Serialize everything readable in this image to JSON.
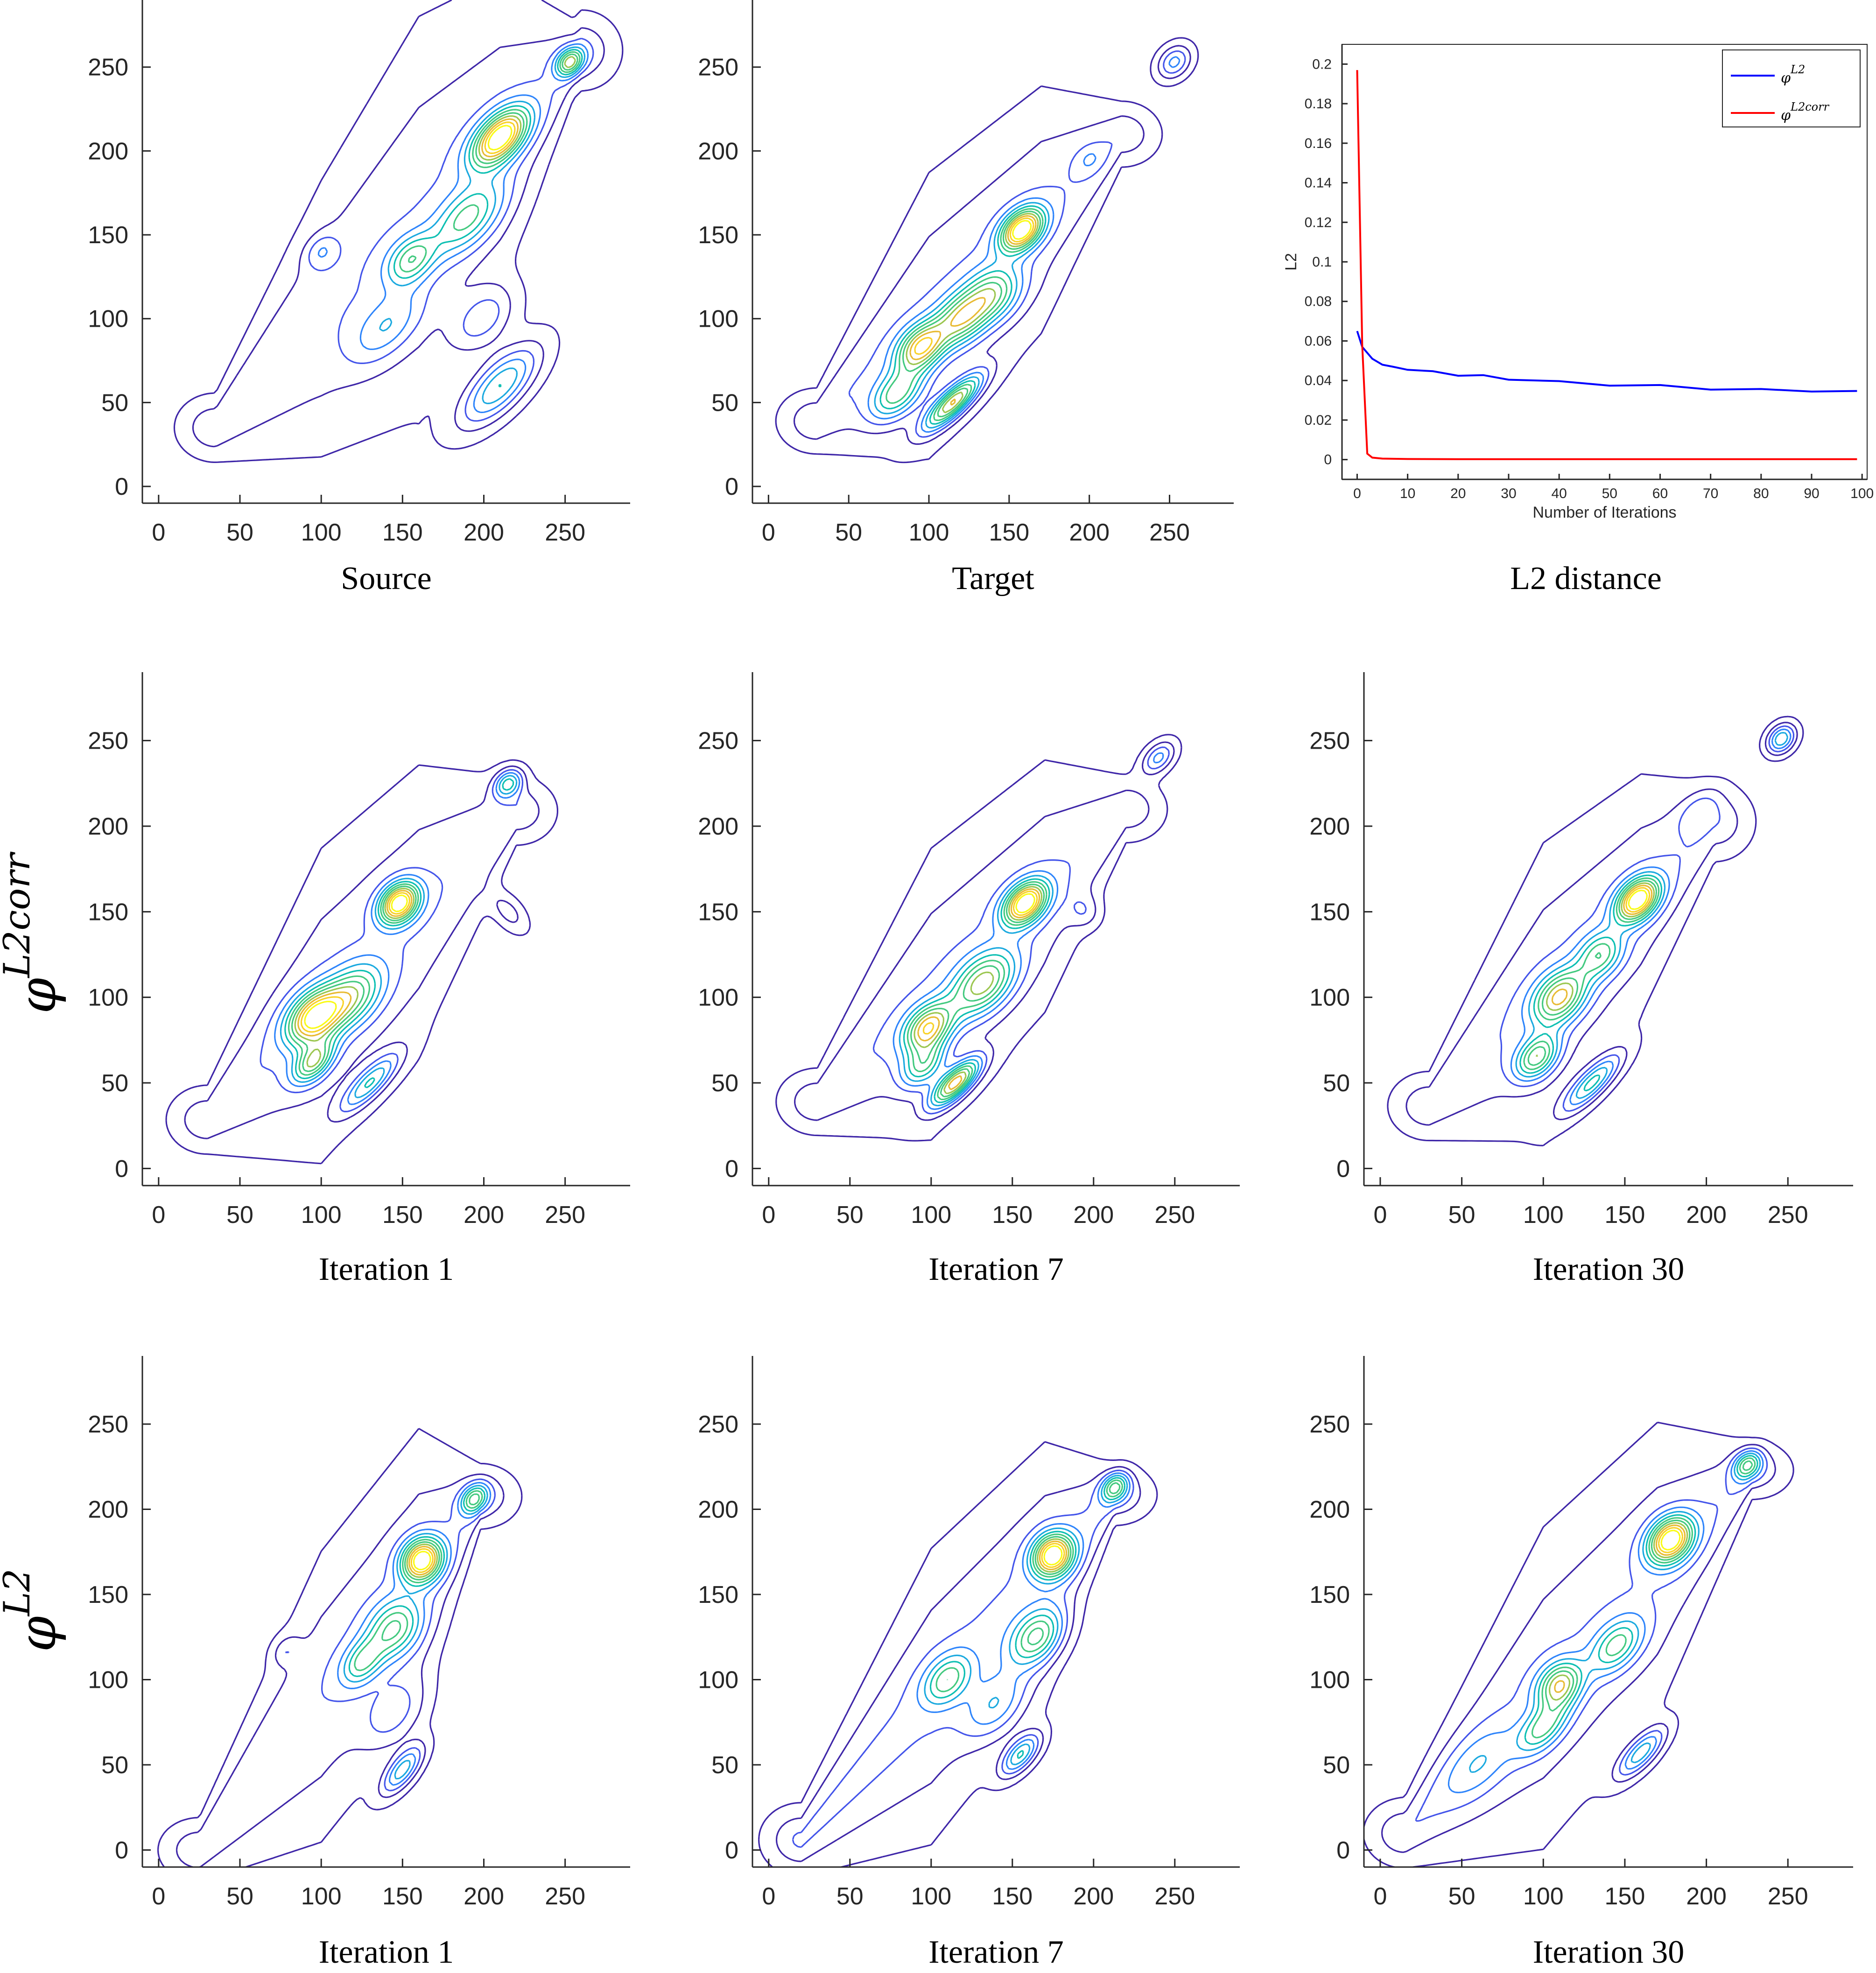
{
  "chart_data": [
    {
      "id": "source",
      "type": "contour",
      "caption": "Source",
      "xlim": [
        -10,
        290
      ],
      "ylim": [
        -10,
        290
      ],
      "xticks": [
        0,
        50,
        100,
        150,
        200,
        250
      ],
      "yticks": [
        0,
        50,
        100,
        150,
        200,
        250
      ],
      "spine": {
        "a": 1.0,
        "b": 0,
        "x0": 35,
        "x1": 260
      },
      "widths": [
        [
          35,
          12
        ],
        [
          100,
          48
        ],
        [
          160,
          70
        ],
        [
          210,
          55
        ],
        [
          255,
          14
        ]
      ],
      "peaks": [
        {
          "x": 210,
          "y": 208,
          "h": 1.0,
          "sx": 11,
          "sy": 8
        },
        {
          "x": 253,
          "y": 253,
          "h": 0.65,
          "sx": 5,
          "sy": 5
        },
        {
          "x": 190,
          "y": 160,
          "h": 0.45,
          "sx": 14,
          "sy": 10
        },
        {
          "x": 155,
          "y": 135,
          "h": 0.45,
          "sx": 9,
          "sy": 8
        },
        {
          "x": 210,
          "y": 60,
          "h": 0.5,
          "sx": 16,
          "sy": 9
        },
        {
          "x": 200,
          "y": 100,
          "h": 0.25,
          "sx": 12,
          "sy": 10
        },
        {
          "x": 140,
          "y": 95,
          "h": 0.25,
          "sx": 14,
          "sy": 10
        },
        {
          "x": 100,
          "y": 140,
          "h": 0.18,
          "sx": 6,
          "sy": 6
        }
      ]
    },
    {
      "id": "target",
      "type": "contour",
      "caption": "Target",
      "xlim": [
        -10,
        290
      ],
      "ylim": [
        -10,
        290
      ],
      "xticks": [
        0,
        50,
        100,
        150,
        200,
        250
      ],
      "yticks": [
        0,
        50,
        100,
        150,
        200,
        250
      ],
      "spine": {
        "a": 0.9,
        "b": 12,
        "x0": 30,
        "x1": 220
      },
      "widths": [
        [
          30,
          12
        ],
        [
          100,
          52
        ],
        [
          170,
          45
        ],
        [
          220,
          12
        ]
      ],
      "peaks": [
        {
          "x": 158,
          "y": 153,
          "h": 1.0,
          "sx": 8,
          "sy": 7
        },
        {
          "x": 95,
          "y": 83,
          "h": 0.75,
          "sx": 9,
          "sy": 8
        },
        {
          "x": 115,
          "y": 50,
          "h": 0.8,
          "sx": 12,
          "sy": 5
        },
        {
          "x": 120,
          "y": 100,
          "h": 0.6,
          "sx": 10,
          "sy": 9
        },
        {
          "x": 140,
          "y": 115,
          "h": 0.5,
          "sx": 10,
          "sy": 10
        },
        {
          "x": 80,
          "y": 55,
          "h": 0.5,
          "sx": 10,
          "sy": 8
        },
        {
          "x": 253,
          "y": 253,
          "h": 0.35,
          "sx": 6,
          "sy": 6
        },
        {
          "x": 200,
          "y": 195,
          "h": 0.12,
          "sx": 5,
          "sy": 5
        }
      ]
    },
    {
      "id": "l2",
      "type": "line",
      "caption": "L2 distance",
      "xlabel": "Number of Iterations",
      "ylabel": "L2",
      "xlim": [
        -3,
        101
      ],
      "ylim": [
        -0.01,
        0.21
      ],
      "xticks": [
        0,
        10,
        20,
        30,
        40,
        50,
        60,
        70,
        80,
        90,
        100
      ],
      "yticks": [
        0,
        0.02,
        0.04,
        0.06,
        0.08,
        0.1,
        0.12,
        0.14,
        0.16,
        0.18,
        0.2
      ],
      "ytick_labels": [
        "0",
        "0.02",
        "0.04",
        "0.06",
        "0.08",
        "0.1",
        "0.12",
        "0.14",
        "0.16",
        "0.18",
        "0.2"
      ],
      "legend_position": "top-right",
      "series": [
        {
          "name": "φ^{L2}",
          "name_base": "φ",
          "name_sup": "L2",
          "color": "#0000ff",
          "x": [
            0,
            1,
            2,
            3,
            5,
            7,
            10,
            15,
            20,
            25,
            30,
            40,
            50,
            60,
            70,
            80,
            90,
            99
          ],
          "y": [
            0.065,
            0.057,
            0.054,
            0.051,
            0.048,
            0.047,
            0.046,
            0.044,
            0.043,
            0.042,
            0.041,
            0.039,
            0.038,
            0.037,
            0.036,
            0.035,
            0.035,
            0.034
          ]
        },
        {
          "name": "φ^{L2^{corr}}",
          "name_base": "φ",
          "name_sup": "L2corr",
          "color": "#ff0000",
          "x": [
            0,
            1,
            2,
            3,
            5,
            10,
            20,
            50,
            99
          ],
          "y": [
            0.197,
            0.058,
            0.003,
            0.001,
            0.0005,
            0.0003,
            0.0002,
            0.0002,
            0.0002
          ]
        }
      ]
    },
    {
      "id": "corr_it1",
      "type": "contour",
      "caption": "Iteration 1",
      "xlim": [
        -10,
        290
      ],
      "ylim": [
        -10,
        290
      ],
      "xticks": [
        0,
        50,
        100,
        150,
        200,
        250
      ],
      "yticks": [
        0,
        50,
        100,
        150,
        200,
        250
      ],
      "spine": {
        "a": 0.95,
        "b": 0,
        "x0": 30,
        "x1": 220
      },
      "widths": [
        [
          30,
          12
        ],
        [
          100,
          55
        ],
        [
          160,
          50
        ],
        [
          220,
          12
        ]
      ],
      "peaks": [
        {
          "x": 148,
          "y": 155,
          "h": 1.0,
          "sx": 7,
          "sy": 7
        },
        {
          "x": 95,
          "y": 88,
          "h": 0.85,
          "sx": 10,
          "sy": 9
        },
        {
          "x": 95,
          "y": 62,
          "h": 0.6,
          "sx": 8,
          "sy": 6
        },
        {
          "x": 118,
          "y": 100,
          "h": 0.55,
          "sx": 12,
          "sy": 10
        },
        {
          "x": 130,
          "y": 50,
          "h": 0.45,
          "sx": 12,
          "sy": 5
        },
        {
          "x": 215,
          "y": 225,
          "h": 0.5,
          "sx": 5,
          "sy": 5
        },
        {
          "x": 215,
          "y": 150,
          "h": 0.18,
          "sx": 4,
          "sy": 10
        }
      ]
    },
    {
      "id": "corr_it7",
      "type": "contour",
      "caption": "Iteration 7",
      "xlim": [
        -10,
        290
      ],
      "ylim": [
        -10,
        290
      ],
      "xticks": [
        0,
        50,
        100,
        150,
        200,
        250
      ],
      "yticks": [
        0,
        50,
        100,
        150,
        200,
        250
      ],
      "spine": {
        "a": 0.9,
        "b": 12,
        "x0": 30,
        "x1": 220
      },
      "widths": [
        [
          30,
          12
        ],
        [
          100,
          52
        ],
        [
          170,
          45
        ],
        [
          220,
          12
        ]
      ],
      "peaks": [
        {
          "x": 158,
          "y": 155,
          "h": 1.0,
          "sx": 8,
          "sy": 7
        },
        {
          "x": 98,
          "y": 82,
          "h": 0.75,
          "sx": 9,
          "sy": 8
        },
        {
          "x": 115,
          "y": 50,
          "h": 0.85,
          "sx": 10,
          "sy": 5
        },
        {
          "x": 132,
          "y": 108,
          "h": 0.65,
          "sx": 12,
          "sy": 10
        },
        {
          "x": 95,
          "y": 60,
          "h": 0.45,
          "sx": 8,
          "sy": 7
        },
        {
          "x": 240,
          "y": 240,
          "h": 0.35,
          "sx": 6,
          "sy": 5
        },
        {
          "x": 195,
          "y": 150,
          "h": 0.15,
          "sx": 5,
          "sy": 7
        }
      ]
    },
    {
      "id": "corr_it30",
      "type": "contour",
      "caption": "Iteration 30",
      "xlim": [
        -10,
        290
      ],
      "ylim": [
        -10,
        290
      ],
      "xticks": [
        0,
        50,
        100,
        150,
        200,
        250
      ],
      "yticks": [
        0,
        50,
        100,
        150,
        200,
        250
      ],
      "spine": {
        "a": 0.95,
        "b": 8,
        "x0": 30,
        "x1": 205
      },
      "widths": [
        [
          30,
          12
        ],
        [
          100,
          52
        ],
        [
          160,
          42
        ],
        [
          205,
          14
        ]
      ],
      "peaks": [
        {
          "x": 158,
          "y": 157,
          "h": 1.0,
          "sx": 8,
          "sy": 7
        },
        {
          "x": 110,
          "y": 100,
          "h": 0.7,
          "sx": 10,
          "sy": 9
        },
        {
          "x": 96,
          "y": 65,
          "h": 0.6,
          "sx": 8,
          "sy": 7
        },
        {
          "x": 130,
          "y": 50,
          "h": 0.5,
          "sx": 12,
          "sy": 5
        },
        {
          "x": 135,
          "y": 125,
          "h": 0.45,
          "sx": 8,
          "sy": 8
        },
        {
          "x": 246,
          "y": 251,
          "h": 0.5,
          "sx": 5,
          "sy": 5
        },
        {
          "x": 195,
          "y": 210,
          "h": 0.15,
          "sx": 8,
          "sy": 6
        }
      ]
    },
    {
      "id": "l2_it1",
      "type": "contour",
      "caption": "Iteration 1",
      "xlim": [
        -10,
        290
      ],
      "ylim": [
        -10,
        290
      ],
      "xticks": [
        0,
        50,
        100,
        150,
        200,
        250
      ],
      "yticks": [
        0,
        50,
        100,
        150,
        200,
        250
      ],
      "spine": {
        "a": 1.2,
        "b": -30,
        "x0": 25,
        "x1": 198
      },
      "widths": [
        [
          25,
          10
        ],
        [
          100,
          45
        ],
        [
          160,
          45
        ],
        [
          198,
          10
        ]
      ],
      "peaks": [
        {
          "x": 162,
          "y": 170,
          "h": 1.0,
          "sx": 7,
          "sy": 8
        },
        {
          "x": 194,
          "y": 206,
          "h": 0.55,
          "sx": 5,
          "sy": 5
        },
        {
          "x": 145,
          "y": 130,
          "h": 0.5,
          "sx": 10,
          "sy": 10
        },
        {
          "x": 125,
          "y": 110,
          "h": 0.4,
          "sx": 8,
          "sy": 7
        },
        {
          "x": 150,
          "y": 47,
          "h": 0.45,
          "sx": 9,
          "sy": 5
        },
        {
          "x": 145,
          "y": 80,
          "h": 0.2,
          "sx": 12,
          "sy": 10
        },
        {
          "x": 78,
          "y": 117,
          "h": 0.15,
          "sx": 5,
          "sy": 5
        }
      ]
    },
    {
      "id": "l2_it7",
      "type": "contour",
      "caption": "Iteration 7",
      "xlim": [
        -10,
        290
      ],
      "ylim": [
        -10,
        290
      ],
      "xticks": [
        0,
        50,
        100,
        150,
        200,
        250
      ],
      "yticks": [
        0,
        50,
        100,
        150,
        200,
        250
      ],
      "spine": {
        "a": 1.05,
        "b": -15,
        "x0": 20,
        "x1": 213
      },
      "widths": [
        [
          20,
          12
        ],
        [
          100,
          48
        ],
        [
          170,
          42
        ],
        [
          213,
          10
        ]
      ],
      "peaks": [
        {
          "x": 175,
          "y": 173,
          "h": 0.9,
          "sx": 7,
          "sy": 8
        },
        {
          "x": 213,
          "y": 213,
          "h": 0.5,
          "sx": 5,
          "sy": 5
        },
        {
          "x": 165,
          "y": 125,
          "h": 0.5,
          "sx": 10,
          "sy": 9
        },
        {
          "x": 110,
          "y": 100,
          "h": 0.4,
          "sx": 9,
          "sy": 8
        },
        {
          "x": 155,
          "y": 56,
          "h": 0.45,
          "sx": 8,
          "sy": 5
        },
        {
          "x": 140,
          "y": 85,
          "h": 0.25,
          "sx": 12,
          "sy": 10
        }
      ]
    },
    {
      "id": "l2_it30",
      "type": "contour",
      "caption": "Iteration 30",
      "xlim": [
        -10,
        290
      ],
      "ylim": [
        -10,
        290
      ],
      "xticks": [
        0,
        50,
        100,
        150,
        200,
        250
      ],
      "yticks": [
        0,
        50,
        100,
        150,
        200,
        250
      ],
      "spine": {
        "a": 1.0,
        "b": -5,
        "x0": 15,
        "x1": 228
      },
      "widths": [
        [
          15,
          12
        ],
        [
          100,
          55
        ],
        [
          170,
          50
        ],
        [
          228,
          10
        ]
      ],
      "peaks": [
        {
          "x": 178,
          "y": 182,
          "h": 1.0,
          "sx": 8,
          "sy": 8
        },
        {
          "x": 225,
          "y": 226,
          "h": 0.55,
          "sx": 5,
          "sy": 5
        },
        {
          "x": 110,
          "y": 97,
          "h": 0.65,
          "sx": 8,
          "sy": 8
        },
        {
          "x": 100,
          "y": 72,
          "h": 0.45,
          "sx": 10,
          "sy": 7
        },
        {
          "x": 145,
          "y": 120,
          "h": 0.45,
          "sx": 10,
          "sy": 8
        },
        {
          "x": 160,
          "y": 57,
          "h": 0.45,
          "sx": 10,
          "sy": 5
        },
        {
          "x": 60,
          "y": 50,
          "h": 0.2,
          "sx": 14,
          "sy": 10
        }
      ]
    }
  ],
  "row_labels": [
    {
      "base": "φ",
      "sup": "L2corr"
    },
    {
      "base": "φ",
      "sup": "L2"
    }
  ],
  "colors": {
    "contour_scale": [
      "#3e26a8",
      "#4354ea",
      "#2d84fb",
      "#1aa9df",
      "#0cbfb2",
      "#42c97f",
      "#9bc650",
      "#e8ba32",
      "#f9d226",
      "#f9fb15"
    ]
  }
}
